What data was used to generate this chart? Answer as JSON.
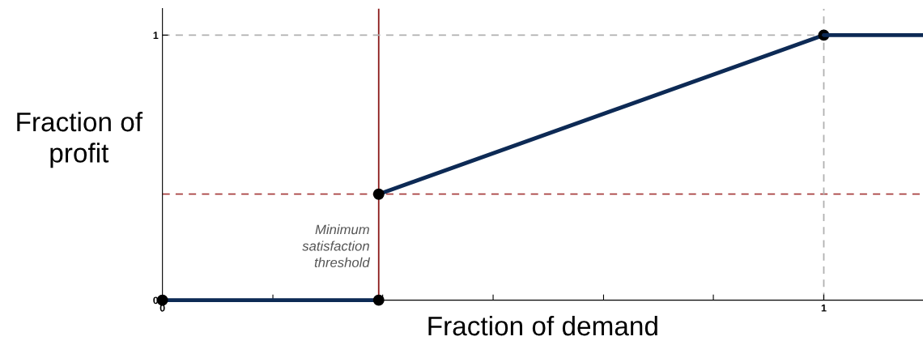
{
  "chart_data": {
    "type": "line",
    "xlabel": "Fraction of demand",
    "ylabel": "Fraction of\nprofit",
    "series": [
      {
        "color": "#0d2a55",
        "x": [
          0,
          0.327
        ],
        "values": [
          0,
          0
        ],
        "marker": "circle"
      },
      {
        "color": "#0d2a55",
        "x": [
          0.327,
          1
        ],
        "values": [
          0.4,
          1
        ],
        "marker": "circle"
      },
      {
        "color": "#0d2a55",
        "x": [
          1,
          1.15
        ],
        "values": [
          1,
          1
        ],
        "marker": "none"
      }
    ],
    "xlim": [
      0,
      1.15
    ],
    "ylim": [
      0,
      1.1
    ],
    "xticks": [
      0,
      {
        "value": 0.167,
        "label": null
      },
      {
        "value": 0.333,
        "label": null
      },
      {
        "value": 0.5,
        "label": null
      },
      {
        "value": 0.667,
        "label": null
      },
      {
        "value": 0.833,
        "label": null
      },
      1
    ],
    "yticks": [
      0,
      1
    ],
    "ref_lines": [
      {
        "axis": "x",
        "value": 0.327,
        "color": "#8b1a1a",
        "line_style": "solid",
        "label": "Minimum\nsatisfaction\nthreshold"
      },
      {
        "axis": "y",
        "value": 0.4,
        "color": "#a84040",
        "line_style": "dashed"
      },
      {
        "axis": "x",
        "value": 1,
        "color": "#b0b0b0",
        "line_style": "dashed"
      },
      {
        "axis": "y",
        "value": 1,
        "color": "#b0b0b0",
        "line_style": "dashed"
      }
    ],
    "grid": false,
    "legend": false,
    "line_style": "solid"
  }
}
